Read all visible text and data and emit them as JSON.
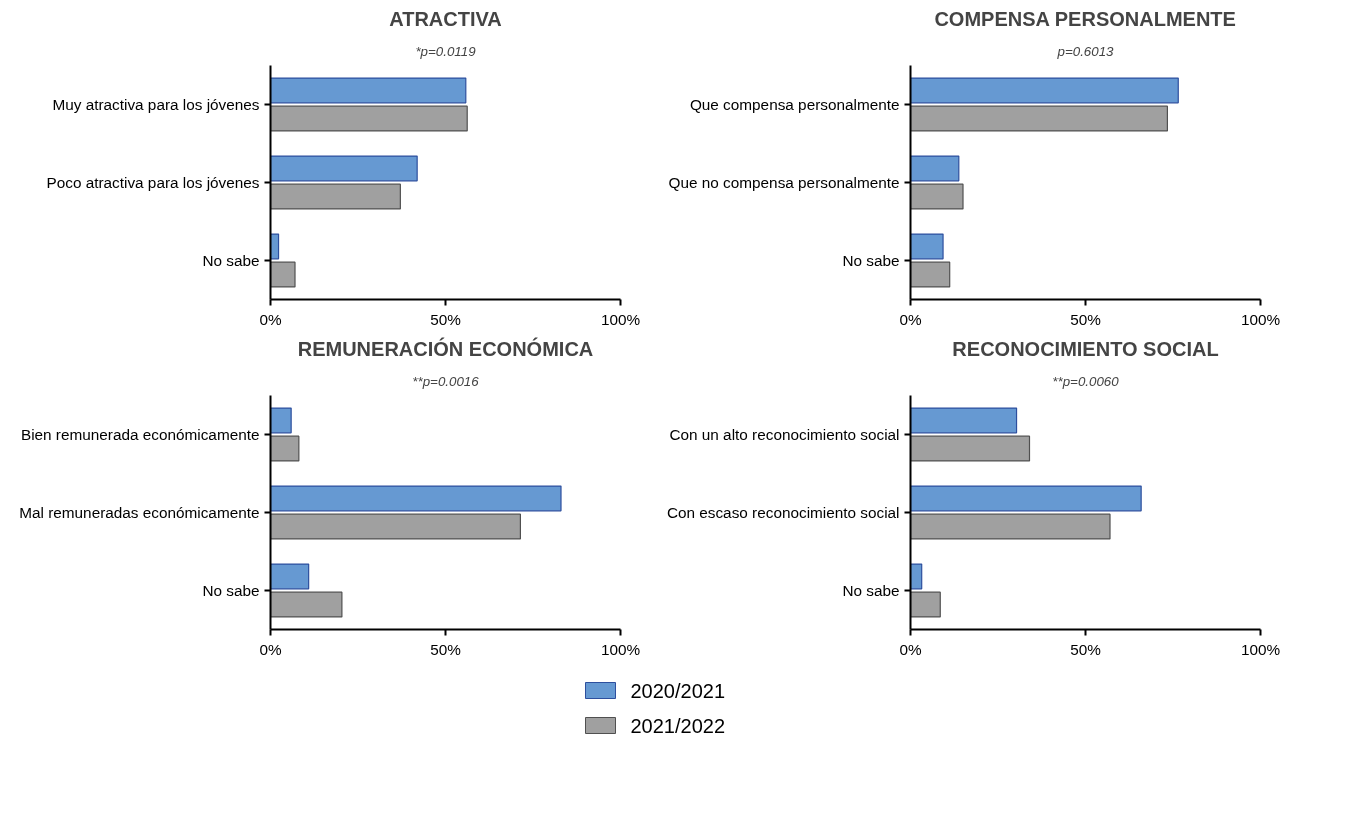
{
  "chart_data": [
    {
      "type": "bar",
      "orientation": "horizontal",
      "title": "ATRACTIVA",
      "subtitle": "*p=0.0119",
      "categories": [
        "Muy atractiva para los jóvenes",
        "Poco atractiva para los jóvenes",
        "No sabe"
      ],
      "xlim": [
        0,
        100
      ],
      "xticks": [
        {
          "value": 0,
          "label": "0%"
        },
        {
          "value": 50,
          "label": "50%"
        },
        {
          "value": 100,
          "label": "100%"
        }
      ],
      "grid": false,
      "series": [
        {
          "color": "#6699d2",
          "values": [
            55.8,
            41.9,
            2.3
          ]
        },
        {
          "color": "#a0a0a0",
          "values": [
            56.2,
            37.1,
            7.0
          ]
        }
      ]
    },
    {
      "type": "bar",
      "orientation": "horizontal",
      "title": "COMPENSA PERSONALMENTE",
      "subtitle": "p=0.6013",
      "categories": [
        "Que compensa personalmente",
        "Que no compensa personalmente",
        "No sabe"
      ],
      "xlim": [
        0,
        100
      ],
      "xticks": [
        {
          "value": 0,
          "label": "0%"
        },
        {
          "value": 50,
          "label": "50%"
        },
        {
          "value": 100,
          "label": "100%"
        }
      ],
      "grid": false,
      "series": [
        {
          "color": "#6699d2",
          "values": [
            76.5,
            13.8,
            9.3
          ]
        },
        {
          "color": "#a0a0a0",
          "values": [
            73.4,
            15.0,
            11.2
          ]
        }
      ]
    },
    {
      "type": "bar",
      "orientation": "horizontal",
      "title": "REMUNERACIÓN ECONÓMICA",
      "subtitle": "**p=0.0016",
      "categories": [
        "Bien remunerada económicamente",
        "Mal remuneradas económicamente",
        "No sabe"
      ],
      "xlim": [
        0,
        100
      ],
      "xticks": [
        {
          "value": 0,
          "label": "0%"
        },
        {
          "value": 50,
          "label": "50%"
        },
        {
          "value": 100,
          "label": "100%"
        }
      ],
      "grid": false,
      "series": [
        {
          "color": "#6699d2",
          "values": [
            5.9,
            83.0,
            10.9
          ]
        },
        {
          "color": "#a0a0a0",
          "values": [
            8.1,
            71.4,
            20.4
          ]
        }
      ]
    },
    {
      "type": "bar",
      "orientation": "horizontal",
      "title": "RECONOCIMIENTO SOCIAL",
      "subtitle": "**p=0.0060",
      "categories": [
        "Con un alto reconocimiento social",
        "Con escaso reconocimiento social",
        "No sabe"
      ],
      "xlim": [
        0,
        100
      ],
      "xticks": [
        {
          "value": 0,
          "label": "0%"
        },
        {
          "value": 50,
          "label": "50%"
        },
        {
          "value": 100,
          "label": "100%"
        }
      ],
      "grid": false,
      "legend": "bottom",
      "series": [
        {
          "name": "2020/2021",
          "color": "#6699d2",
          "values": [
            30.3,
            65.9,
            3.2
          ]
        },
        {
          "name": "2021/2022",
          "color": "#a0a0a0",
          "values": [
            34.0,
            57.0,
            8.5
          ]
        }
      ]
    }
  ]
}
